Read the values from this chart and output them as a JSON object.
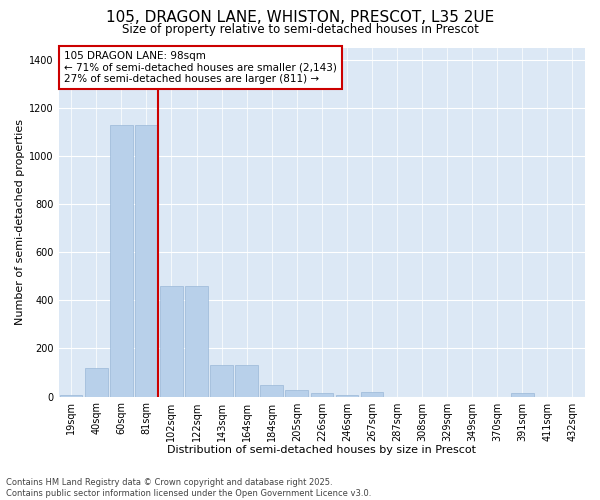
{
  "title1": "105, DRAGON LANE, WHISTON, PRESCOT, L35 2UE",
  "title2": "Size of property relative to semi-detached houses in Prescot",
  "xlabel": "Distribution of semi-detached houses by size in Prescot",
  "ylabel": "Number of semi-detached properties",
  "categories": [
    "19sqm",
    "40sqm",
    "60sqm",
    "81sqm",
    "102sqm",
    "122sqm",
    "143sqm",
    "164sqm",
    "184sqm",
    "205sqm",
    "226sqm",
    "246sqm",
    "267sqm",
    "287sqm",
    "308sqm",
    "329sqm",
    "349sqm",
    "370sqm",
    "391sqm",
    "411sqm",
    "432sqm"
  ],
  "values": [
    5,
    118,
    1130,
    1130,
    460,
    460,
    132,
    132,
    48,
    28,
    14,
    5,
    20,
    0,
    0,
    0,
    0,
    0,
    14,
    0,
    0
  ],
  "bar_color": "#b8d0ea",
  "bar_edge_color": "#9ab8d8",
  "vline_color": "#cc0000",
  "annotation_line1": "105 DRAGON LANE: 98sqm",
  "annotation_line2": "← 71% of semi-detached houses are smaller (2,143)",
  "annotation_line3": "27% of semi-detached houses are larger (811) →",
  "annotation_box_color": "#cc0000",
  "ylim": [
    0,
    1450
  ],
  "yticks": [
    0,
    200,
    400,
    600,
    800,
    1000,
    1200,
    1400
  ],
  "plot_background": "#dce8f5",
  "footer1": "Contains HM Land Registry data © Crown copyright and database right 2025.",
  "footer2": "Contains public sector information licensed under the Open Government Licence v3.0.",
  "title_fontsize": 11,
  "subtitle_fontsize": 8.5,
  "axis_label_fontsize": 8,
  "tick_fontsize": 7,
  "annotation_fontsize": 7.5,
  "footer_fontsize": 6
}
